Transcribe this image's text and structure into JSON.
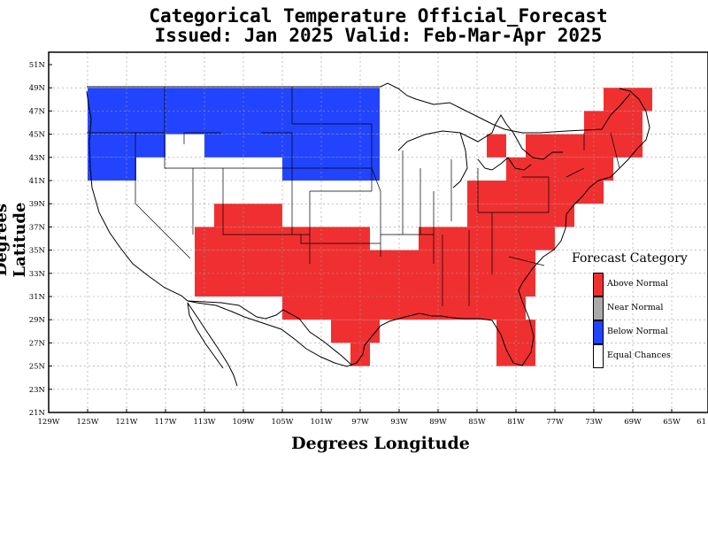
{
  "title_line1": "Categorical Temperature Official_Forecast",
  "title_line2": "Issued: Jan 2025 Valid: Feb-Mar-Apr 2025",
  "xlabel": "Degrees Longitude",
  "ylabel": "Degrees Latitude",
  "lat_ticks": [
    "51N",
    "49N",
    "47N",
    "45N",
    "43N",
    "41N",
    "39N",
    "37N",
    "35N",
    "33N",
    "31N",
    "29N",
    "27N",
    "25N",
    "23N",
    "21N"
  ],
  "lon_ticks": [
    "129W",
    "125W",
    "121W",
    "117W",
    "113W",
    "109W",
    "105W",
    "101W",
    "97W",
    "93W",
    "89W",
    "85W",
    "81W",
    "77W",
    "73W",
    "69W",
    "65W",
    "61"
  ],
  "legend": {
    "title": "Forecast Category",
    "items": [
      {
        "label": "Above Normal",
        "color": "#f03030"
      },
      {
        "label": "Near Normal",
        "color": "#aaaaaa"
      },
      {
        "label": "Below Normal",
        "color": "#2244ff"
      },
      {
        "label": "Equal Chances",
        "color": "#ffffff"
      }
    ]
  },
  "colors": {
    "above": "#f03030",
    "below": "#2244ff"
  },
  "forecast_regions": {
    "below_normal": [
      {
        "lon": [
          -125,
          -95
        ],
        "lat": [
          45,
          49
        ]
      },
      {
        "lon": [
          -125,
          -117
        ],
        "lat": [
          43,
          45
        ]
      },
      {
        "lon": [
          -113,
          -95
        ],
        "lat": [
          43,
          45
        ]
      },
      {
        "lon": [
          -125,
          -120
        ],
        "lat": [
          41,
          43
        ]
      },
      {
        "lon": [
          -105,
          -95
        ],
        "lat": [
          41,
          43
        ]
      }
    ],
    "above_normal": [
      {
        "lon": [
          -112,
          -105
        ],
        "lat": [
          37,
          39
        ]
      },
      {
        "lon": [
          -114,
          -96
        ],
        "lat": [
          35,
          37
        ]
      },
      {
        "lon": [
          -91,
          -77
        ],
        "lat": [
          35,
          37
        ]
      },
      {
        "lon": [
          -86,
          -75
        ],
        "lat": [
          37,
          39
        ]
      },
      {
        "lon": [
          -86,
          -72
        ],
        "lat": [
          39,
          41
        ]
      },
      {
        "lon": [
          -82,
          -71
        ],
        "lat": [
          41,
          43
        ]
      },
      {
        "lon": [
          -80,
          -68
        ],
        "lat": [
          43,
          45
        ]
      },
      {
        "lon": [
          -74,
          -68
        ],
        "lat": [
          45,
          47
        ]
      },
      {
        "lon": [
          -72,
          -67
        ],
        "lat": [
          47,
          49
        ]
      },
      {
        "lon": [
          -84,
          -82
        ],
        "lat": [
          43,
          45
        ]
      },
      {
        "lon": [
          -114,
          -79
        ],
        "lat": [
          31,
          35
        ]
      },
      {
        "lon": [
          -105,
          -80
        ],
        "lat": [
          29,
          31
        ]
      },
      {
        "lon": [
          -100,
          -95
        ],
        "lat": [
          27,
          29
        ]
      },
      {
        "lon": [
          -98,
          -96
        ],
        "lat": [
          25,
          27
        ]
      },
      {
        "lon": [
          -83,
          -79
        ],
        "lat": [
          25,
          29
        ]
      }
    ]
  }
}
